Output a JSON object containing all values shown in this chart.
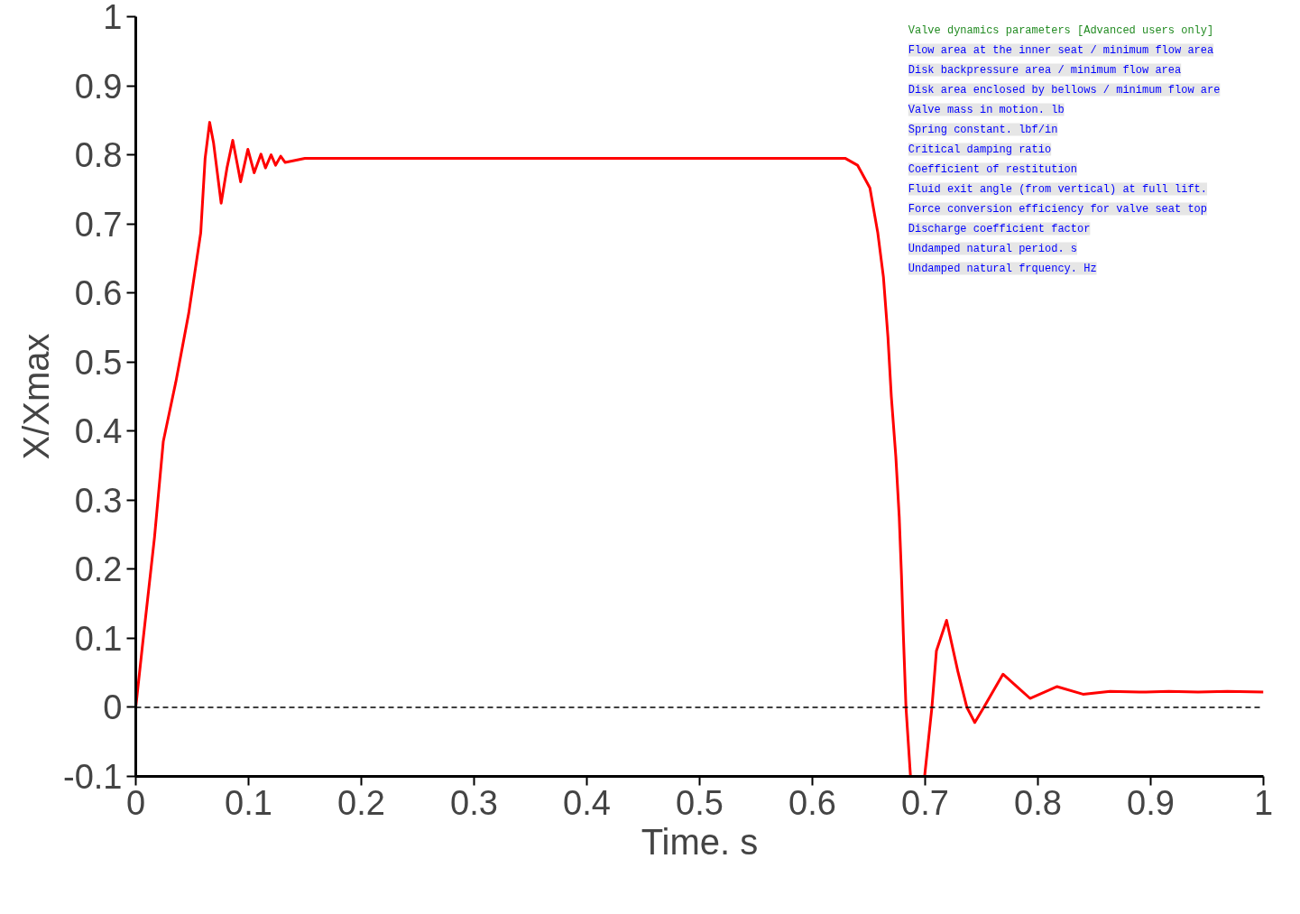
{
  "chart_data": {
    "type": "line",
    "xlabel": "Time. s",
    "ylabel": "X/Xmax",
    "x": [
      0,
      0.0063,
      0.0166,
      0.0244,
      0.0355,
      0.047,
      0.0576,
      0.0615,
      0.0655,
      0.069,
      0.0757,
      0.081,
      0.086,
      0.093,
      0.0994,
      0.105,
      0.111,
      0.115,
      0.12,
      0.124,
      0.1285,
      0.1325,
      0.15,
      0.2,
      0.3,
      0.4,
      0.5,
      0.6,
      0.629,
      0.64,
      0.651,
      0.658,
      0.663,
      0.667,
      0.67,
      0.674,
      0.677,
      0.679,
      0.6806,
      0.683,
      0.687,
      0.693,
      0.6995,
      0.706,
      0.71,
      0.719,
      0.729,
      0.737,
      0.744,
      0.752,
      0.769,
      0.793,
      0.817,
      0.84,
      0.864,
      0.89,
      0.916,
      0.942,
      0.968,
      1.0
    ],
    "series": [
      {
        "color": "#ff0000",
        "values": [
          0,
          0.095,
          0.246,
          0.385,
          0.471,
          0.571,
          0.687,
          0.795,
          0.847,
          0.817,
          0.73,
          0.782,
          0.821,
          0.761,
          0.808,
          0.774,
          0.801,
          0.781,
          0.8,
          0.785,
          0.798,
          0.789,
          0.795,
          0.795,
          0.795,
          0.795,
          0.795,
          0.795,
          0.795,
          0.785,
          0.752,
          0.687,
          0.623,
          0.536,
          0.45,
          0.363,
          0.276,
          0.191,
          0.108,
          0,
          -0.1,
          null,
          -0.1,
          0,
          0.082,
          0.126,
          0.052,
          0,
          -0.022,
          0,
          0.048,
          0.013,
          0.03,
          0.019,
          0.023,
          0.022,
          0.023,
          0.022,
          0.023,
          0.022
        ]
      }
    ],
    "xlim": [
      0,
      1
    ],
    "ylim": [
      -0.1,
      1
    ],
    "xticks": [
      0,
      0.1,
      0.2,
      0.3,
      0.4,
      0.5,
      0.6,
      0.7,
      0.8,
      0.9,
      1
    ],
    "yticks": [
      -0.1,
      0,
      0.1,
      0.2,
      0.3,
      0.4,
      0.5,
      0.6,
      0.7,
      0.8,
      0.9,
      1
    ],
    "grid": false,
    "marker": "none",
    "line_style": "solid",
    "ref_lines": [
      {
        "axis": "y",
        "value": 0,
        "color": "#000000",
        "line_style": "dashed"
      }
    ],
    "annotations": [
      "Valve dynamics parameters [Advanced users only]",
      "Flow area at the inner seat / minimum flow area",
      "Disk backpressure area / minimum flow area",
      "Disk area enclosed by bellows / minimum flow are",
      "Valve mass in motion. lb",
      "Spring constant. lbf/in",
      "Critical damping ratio",
      "Coefficient of restitution",
      "Fluid exit angle (from vertical) at full lift.",
      "Force conversion efficiency for valve seat top",
      "Discharge coefficient factor",
      "Undamped natural period. s",
      "Undamped natural frquency. Hz"
    ]
  }
}
